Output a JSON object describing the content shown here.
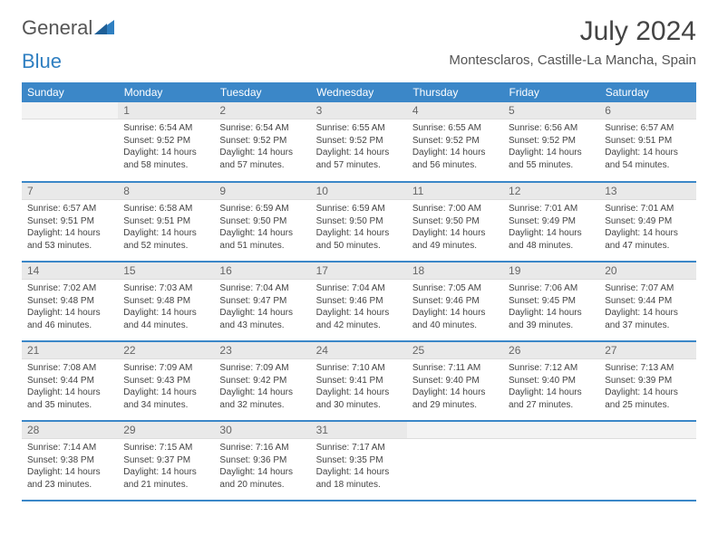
{
  "brand": {
    "word1": "General",
    "word2": "Blue"
  },
  "title": "July 2024",
  "location": "Montesclaros, Castille-La Mancha, Spain",
  "colors": {
    "header_bg": "#3b87c8",
    "header_text": "#ffffff",
    "daynum_bg": "#e9e9e9",
    "border": "#3b87c8",
    "brand_blue": "#2f7fc1"
  },
  "weekdays": [
    "Sunday",
    "Monday",
    "Tuesday",
    "Wednesday",
    "Thursday",
    "Friday",
    "Saturday"
  ],
  "grid": [
    [
      null,
      {
        "n": "1",
        "sunrise": "6:54 AM",
        "sunset": "9:52 PM",
        "daylight": "14 hours and 58 minutes."
      },
      {
        "n": "2",
        "sunrise": "6:54 AM",
        "sunset": "9:52 PM",
        "daylight": "14 hours and 57 minutes."
      },
      {
        "n": "3",
        "sunrise": "6:55 AM",
        "sunset": "9:52 PM",
        "daylight": "14 hours and 57 minutes."
      },
      {
        "n": "4",
        "sunrise": "6:55 AM",
        "sunset": "9:52 PM",
        "daylight": "14 hours and 56 minutes."
      },
      {
        "n": "5",
        "sunrise": "6:56 AM",
        "sunset": "9:52 PM",
        "daylight": "14 hours and 55 minutes."
      },
      {
        "n": "6",
        "sunrise": "6:57 AM",
        "sunset": "9:51 PM",
        "daylight": "14 hours and 54 minutes."
      }
    ],
    [
      {
        "n": "7",
        "sunrise": "6:57 AM",
        "sunset": "9:51 PM",
        "daylight": "14 hours and 53 minutes."
      },
      {
        "n": "8",
        "sunrise": "6:58 AM",
        "sunset": "9:51 PM",
        "daylight": "14 hours and 52 minutes."
      },
      {
        "n": "9",
        "sunrise": "6:59 AM",
        "sunset": "9:50 PM",
        "daylight": "14 hours and 51 minutes."
      },
      {
        "n": "10",
        "sunrise": "6:59 AM",
        "sunset": "9:50 PM",
        "daylight": "14 hours and 50 minutes."
      },
      {
        "n": "11",
        "sunrise": "7:00 AM",
        "sunset": "9:50 PM",
        "daylight": "14 hours and 49 minutes."
      },
      {
        "n": "12",
        "sunrise": "7:01 AM",
        "sunset": "9:49 PM",
        "daylight": "14 hours and 48 minutes."
      },
      {
        "n": "13",
        "sunrise": "7:01 AM",
        "sunset": "9:49 PM",
        "daylight": "14 hours and 47 minutes."
      }
    ],
    [
      {
        "n": "14",
        "sunrise": "7:02 AM",
        "sunset": "9:48 PM",
        "daylight": "14 hours and 46 minutes."
      },
      {
        "n": "15",
        "sunrise": "7:03 AM",
        "sunset": "9:48 PM",
        "daylight": "14 hours and 44 minutes."
      },
      {
        "n": "16",
        "sunrise": "7:04 AM",
        "sunset": "9:47 PM",
        "daylight": "14 hours and 43 minutes."
      },
      {
        "n": "17",
        "sunrise": "7:04 AM",
        "sunset": "9:46 PM",
        "daylight": "14 hours and 42 minutes."
      },
      {
        "n": "18",
        "sunrise": "7:05 AM",
        "sunset": "9:46 PM",
        "daylight": "14 hours and 40 minutes."
      },
      {
        "n": "19",
        "sunrise": "7:06 AM",
        "sunset": "9:45 PM",
        "daylight": "14 hours and 39 minutes."
      },
      {
        "n": "20",
        "sunrise": "7:07 AM",
        "sunset": "9:44 PM",
        "daylight": "14 hours and 37 minutes."
      }
    ],
    [
      {
        "n": "21",
        "sunrise": "7:08 AM",
        "sunset": "9:44 PM",
        "daylight": "14 hours and 35 minutes."
      },
      {
        "n": "22",
        "sunrise": "7:09 AM",
        "sunset": "9:43 PM",
        "daylight": "14 hours and 34 minutes."
      },
      {
        "n": "23",
        "sunrise": "7:09 AM",
        "sunset": "9:42 PM",
        "daylight": "14 hours and 32 minutes."
      },
      {
        "n": "24",
        "sunrise": "7:10 AM",
        "sunset": "9:41 PM",
        "daylight": "14 hours and 30 minutes."
      },
      {
        "n": "25",
        "sunrise": "7:11 AM",
        "sunset": "9:40 PM",
        "daylight": "14 hours and 29 minutes."
      },
      {
        "n": "26",
        "sunrise": "7:12 AM",
        "sunset": "9:40 PM",
        "daylight": "14 hours and 27 minutes."
      },
      {
        "n": "27",
        "sunrise": "7:13 AM",
        "sunset": "9:39 PM",
        "daylight": "14 hours and 25 minutes."
      }
    ],
    [
      {
        "n": "28",
        "sunrise": "7:14 AM",
        "sunset": "9:38 PM",
        "daylight": "14 hours and 23 minutes."
      },
      {
        "n": "29",
        "sunrise": "7:15 AM",
        "sunset": "9:37 PM",
        "daylight": "14 hours and 21 minutes."
      },
      {
        "n": "30",
        "sunrise": "7:16 AM",
        "sunset": "9:36 PM",
        "daylight": "14 hours and 20 minutes."
      },
      {
        "n": "31",
        "sunrise": "7:17 AM",
        "sunset": "9:35 PM",
        "daylight": "14 hours and 18 minutes."
      },
      null,
      null,
      null
    ]
  ],
  "labels": {
    "sunrise_prefix": "Sunrise: ",
    "sunset_prefix": "Sunset: ",
    "daylight_prefix": "Daylight: "
  }
}
